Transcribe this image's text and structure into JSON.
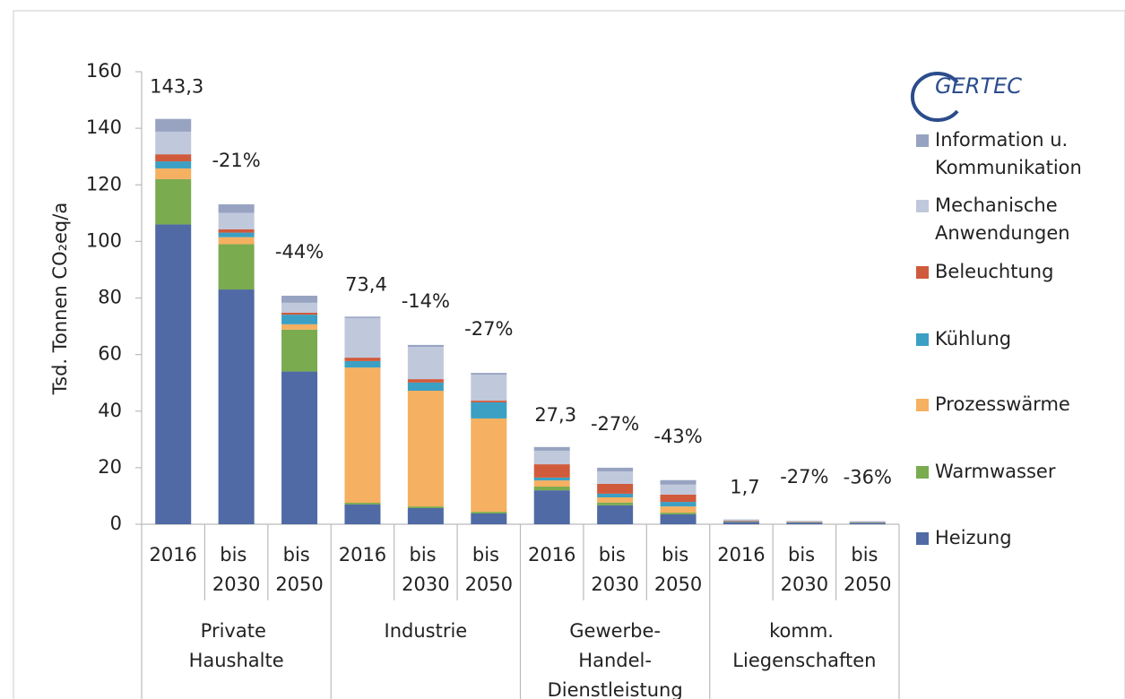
{
  "logo": "GERTEC",
  "chart_data": {
    "type": "stacked_bar",
    "y_label": "Tsd. Tonnen CO₂eq/a",
    "categories": [
      "2016",
      "bis 2030",
      "bis 2050",
      "2016",
      "bis 2030",
      "bis 2050",
      "2016",
      "bis 2030",
      "bis 2050",
      "2016",
      "bis 2030",
      "bis 2050"
    ],
    "groups": [
      "Private Haushalte",
      "Industrie",
      "Gewerbe-Handel-Dienstleistung",
      "komm. Liegenschaften"
    ],
    "annotations": [
      "143,3",
      "-21%",
      "-44%",
      "73,4",
      "-14%",
      "-27%",
      "27,3",
      "-27%",
      "-43%",
      "1,7",
      "-27%",
      "-36%"
    ],
    "ylim": [
      0,
      160
    ],
    "yticks": [
      0,
      20,
      40,
      60,
      80,
      100,
      120,
      140,
      160
    ],
    "grid": false,
    "legend": "right",
    "series": [
      {
        "name": "Heizung",
        "color": "#4f6aa5",
        "values": [
          106,
          83,
          54,
          7,
          5.7,
          3.8,
          12,
          6.7,
          3.5,
          0.8,
          0.6,
          0.5
        ]
      },
      {
        "name": "Warmwasser",
        "color": "#7aab4f",
        "values": [
          16,
          16,
          14.8,
          0.6,
          0.6,
          0.6,
          1.3,
          1,
          0.6,
          0.1,
          0.1,
          0.1
        ]
      },
      {
        "name": "Prozesswärme",
        "color": "#f5b061",
        "values": [
          3.8,
          2.5,
          1.9,
          47.8,
          40.9,
          33,
          2.2,
          1.8,
          2.2,
          0.1,
          0.1,
          0.1
        ]
      },
      {
        "name": "Kühlung",
        "color": "#3ba0c4",
        "values": [
          2.5,
          1.6,
          3.4,
          2.3,
          2.9,
          5.7,
          1,
          1.3,
          1.6,
          0.1,
          0.1,
          0.1
        ]
      },
      {
        "name": "Beleuchtung",
        "color": "#d05a3c",
        "values": [
          2.5,
          1.2,
          0.7,
          1.2,
          1.2,
          0.6,
          4.7,
          3.5,
          2.6,
          0.2,
          0.1,
          0.1
        ]
      },
      {
        "name": "Mechanische Anwendungen",
        "color": "#c0c8dc",
        "values": [
          8,
          5.8,
          3.5,
          14,
          11.4,
          9.2,
          4.8,
          4.4,
          3.5,
          0.3,
          0.2,
          0.15
        ]
      },
      {
        "name": "Information u. Kommunikation",
        "color": "#97a3c1",
        "values": [
          4.5,
          3,
          2.5,
          0.5,
          0.7,
          0.6,
          1.3,
          1.3,
          1.6,
          0.1,
          0.05,
          0.05
        ]
      }
    ]
  }
}
